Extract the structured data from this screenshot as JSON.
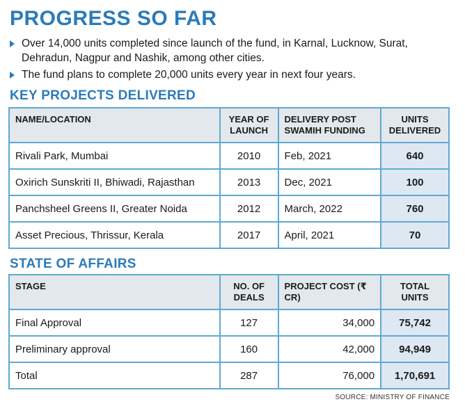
{
  "title": "PROGRESS SO FAR",
  "bullets": [
    "Over 14,000 units completed since launch of the fund, in Karnal, Lucknow, Surat, Dehradun, Nagpur and Nashik, among other cities.",
    "The fund plans to complete 20,000 units every year in next four years."
  ],
  "key_projects": {
    "title": "KEY PROJECTS DELIVERED",
    "headers": [
      "NAME/LOCATION",
      "YEAR OF LAUNCH",
      "DELIVERY POST SWAMIH FUNDING",
      "UNITS DELIVERED"
    ],
    "rows": [
      [
        "Rivali Park, Mumbai",
        "2010",
        "Feb, 2021",
        "640"
      ],
      [
        "Oxirich Sunskriti II, Bhiwadi, Rajasthan",
        "2013",
        "Dec, 2021",
        "100"
      ],
      [
        "Panchsheel Greens II, Greater Noida",
        "2012",
        "March, 2022",
        "760"
      ],
      [
        "Asset Precious, Thrissur, Kerala",
        "2017",
        "April, 2021",
        "70"
      ]
    ]
  },
  "state_of_affairs": {
    "title": "STATE OF AFFAIRS",
    "headers": [
      "STAGE",
      "NO. OF DEALS",
      "PROJECT COST (₹ CR)",
      "TOTAL UNITS"
    ],
    "rows": [
      [
        "Final Approval",
        "127",
        "34,000",
        "75,742"
      ],
      [
        "Preliminary approval",
        "160",
        "42,000",
        "94,949"
      ],
      [
        "Total",
        "287",
        "76,000",
        "1,70,691"
      ]
    ]
  },
  "source": "SOURCE: MINISTRY OF FINANCE",
  "colors": {
    "accent": "#2b7bb9",
    "border": "#5fa8d3",
    "header_bg": "#e3e8ec",
    "units_bg": "#dde8f3"
  }
}
